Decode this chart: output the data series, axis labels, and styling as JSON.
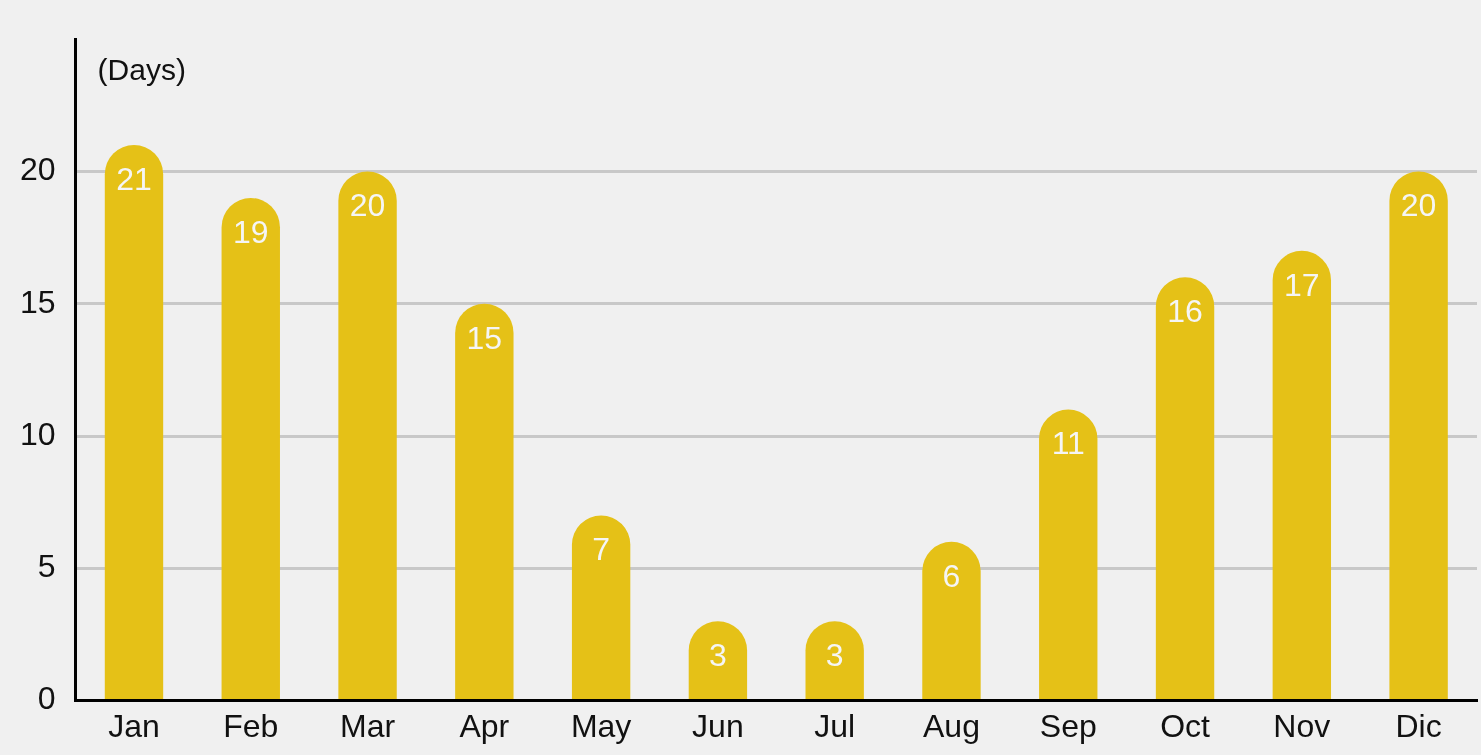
{
  "chart_data": {
    "type": "bar",
    "ylabel": "(Days)",
    "categories": [
      "Jan",
      "Feb",
      "Mar",
      "Apr",
      "May",
      "Jun",
      "Jul",
      "Aug",
      "Sep",
      "Oct",
      "Nov",
      "Dic"
    ],
    "values": [
      21,
      19,
      20,
      15,
      7,
      3,
      3,
      6,
      11,
      16,
      17,
      20
    ],
    "color": "#e5c117",
    "ylim": [
      0,
      25
    ],
    "yticks": [
      0,
      5,
      10,
      15,
      20
    ],
    "grid": "y",
    "data_labels": true,
    "legend": false
  }
}
